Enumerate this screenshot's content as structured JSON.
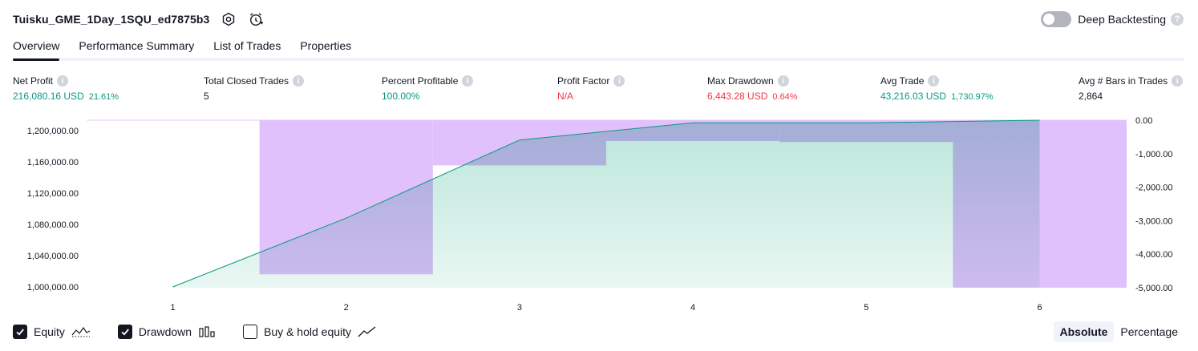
{
  "header": {
    "title": "Tuisku_GME_1Day_1SQU_ed7875b3"
  },
  "deep_backtesting": {
    "label": "Deep Backtesting",
    "help": "?"
  },
  "tabs": [
    {
      "label": "Overview"
    },
    {
      "label": "Performance Summary"
    },
    {
      "label": "List of Trades"
    },
    {
      "label": "Properties"
    }
  ],
  "metrics": {
    "net_profit": {
      "label": "Net Profit",
      "value": "216,080.16 USD",
      "sub": "21.61%",
      "help": "i"
    },
    "total_closed_trades": {
      "label": "Total Closed Trades",
      "value": "5",
      "help": "i"
    },
    "percent_profitable": {
      "label": "Percent Profitable",
      "value": "100.00%",
      "help": "i"
    },
    "profit_factor": {
      "label": "Profit Factor",
      "value": "N/A",
      "help": "i"
    },
    "max_drawdown": {
      "label": "Max Drawdown",
      "value": "6,443.28 USD",
      "sub": "0.64%",
      "help": "i"
    },
    "avg_trade": {
      "label": "Avg Trade",
      "value": "43,216.03 USD",
      "sub": "1,730.97%",
      "help": "i"
    },
    "avg_bars": {
      "label": "Avg # Bars in Trades",
      "value": "2,864",
      "help": "i"
    }
  },
  "colors": {
    "equity_line": "#089981",
    "equity_fill": "#c8ebe3",
    "drawdown_bar": "#e1c1fb",
    "overlap": "#adb5e3",
    "profit": "#089981",
    "loss": "#f23645"
  },
  "chart_data": {
    "type": "area",
    "x": [
      1,
      2,
      3,
      4,
      5,
      6
    ],
    "x_tick_labels": [
      "1",
      "2",
      "3",
      "4",
      "5",
      "6"
    ],
    "equity": {
      "x": [
        1,
        2,
        3,
        4,
        5,
        6
      ],
      "values": [
        1000000,
        1088000,
        1188000,
        1210000,
        1210000,
        1216080.16
      ]
    },
    "drawdown": {
      "x": [
        1,
        2,
        3,
        4,
        5,
        6
      ],
      "values": [
        0,
        -4600,
        -1350,
        -620,
        -650,
        -5000
      ]
    },
    "y_left": {
      "ticks": [
        1000000,
        1040000,
        1080000,
        1120000,
        1160000,
        1200000
      ],
      "tick_labels": [
        "1,000,000.00",
        "1,040,000.00",
        "1,080,000.00",
        "1,120,000.00",
        "1,160,000.00",
        "1,200,000.00"
      ]
    },
    "y_right": {
      "ticks": [
        0,
        -1000,
        -2000,
        -3000,
        -4000,
        -5000
      ],
      "tick_labels": [
        "0.00",
        "-1,000.00",
        "-2,000.00",
        "-3,000.00",
        "-4,000.00",
        "-5,000.00"
      ]
    },
    "grid": false,
    "legend": "bottom-left"
  },
  "legend": {
    "equity": {
      "label": "Equity",
      "checked": true
    },
    "drawdown": {
      "label": "Drawdown",
      "checked": true
    },
    "buy_hold": {
      "label": "Buy & hold equity",
      "checked": false
    }
  },
  "modes": [
    {
      "label": "Absolute",
      "active": true
    },
    {
      "label": "Percentage",
      "active": false
    }
  ]
}
